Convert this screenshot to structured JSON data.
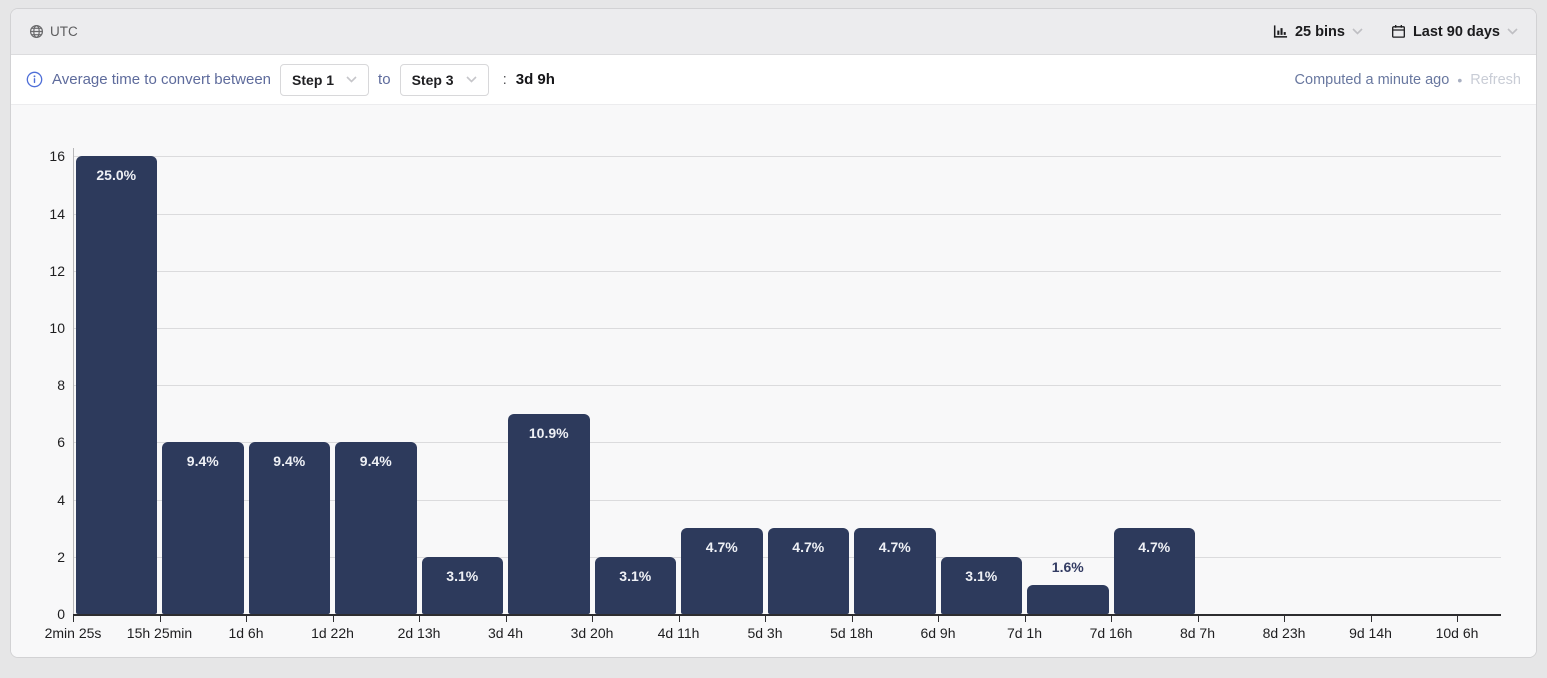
{
  "header": {
    "timezone": "UTC",
    "bins_label": "25 bins",
    "date_range_label": "Last 90 days"
  },
  "subheader": {
    "description": "Average time to convert between",
    "from_step": "Step 1",
    "to_word": "to",
    "to_step": "Step 3",
    "colon": ":",
    "average_value": "3d 9h",
    "computed_status": "Computed a minute ago",
    "separator": "•",
    "refresh_label": "Refresh"
  },
  "icons": {
    "timezone": "globe-icon",
    "bins": "histogram-icon",
    "date_range": "calendar-icon",
    "dropdown": "chevron-down-icon",
    "info": "info-icon"
  },
  "colors": {
    "bar": "#2d3a5c",
    "accent_text": "#5e6b9c",
    "info_icon": "#4f6fd8",
    "refresh_disabled": "#c9cdd6",
    "panel_bg": "#f8f8f9",
    "topbar_bg": "#ececee"
  },
  "chart_data": {
    "type": "bar",
    "title": "",
    "xlabel": "",
    "ylabel": "",
    "x_tick_labels": [
      "2min 25s",
      "15h 25min",
      "1d 6h",
      "1d 22h",
      "2d 13h",
      "3d 4h",
      "3d 20h",
      "4d 11h",
      "5d 3h",
      "5d 18h",
      "6d 9h",
      "7d 1h",
      "7d 16h",
      "8d 7h",
      "8d 23h",
      "9d 14h",
      "10d 6h"
    ],
    "values": [
      16,
      6,
      6,
      6,
      2,
      7,
      2,
      3,
      3,
      3,
      2,
      1,
      3
    ],
    "bar_labels": [
      "25.0%",
      "9.4%",
      "9.4%",
      "9.4%",
      "3.1%",
      "10.9%",
      "3.1%",
      "4.7%",
      "4.7%",
      "4.7%",
      "3.1%",
      "1.6%",
      "4.7%"
    ],
    "y_ticks": [
      0,
      2,
      4,
      6,
      8,
      10,
      12,
      14,
      16
    ],
    "ylim": [
      0,
      16
    ],
    "grid": true,
    "legend": false,
    "bar_color": "#2d3a5c"
  }
}
